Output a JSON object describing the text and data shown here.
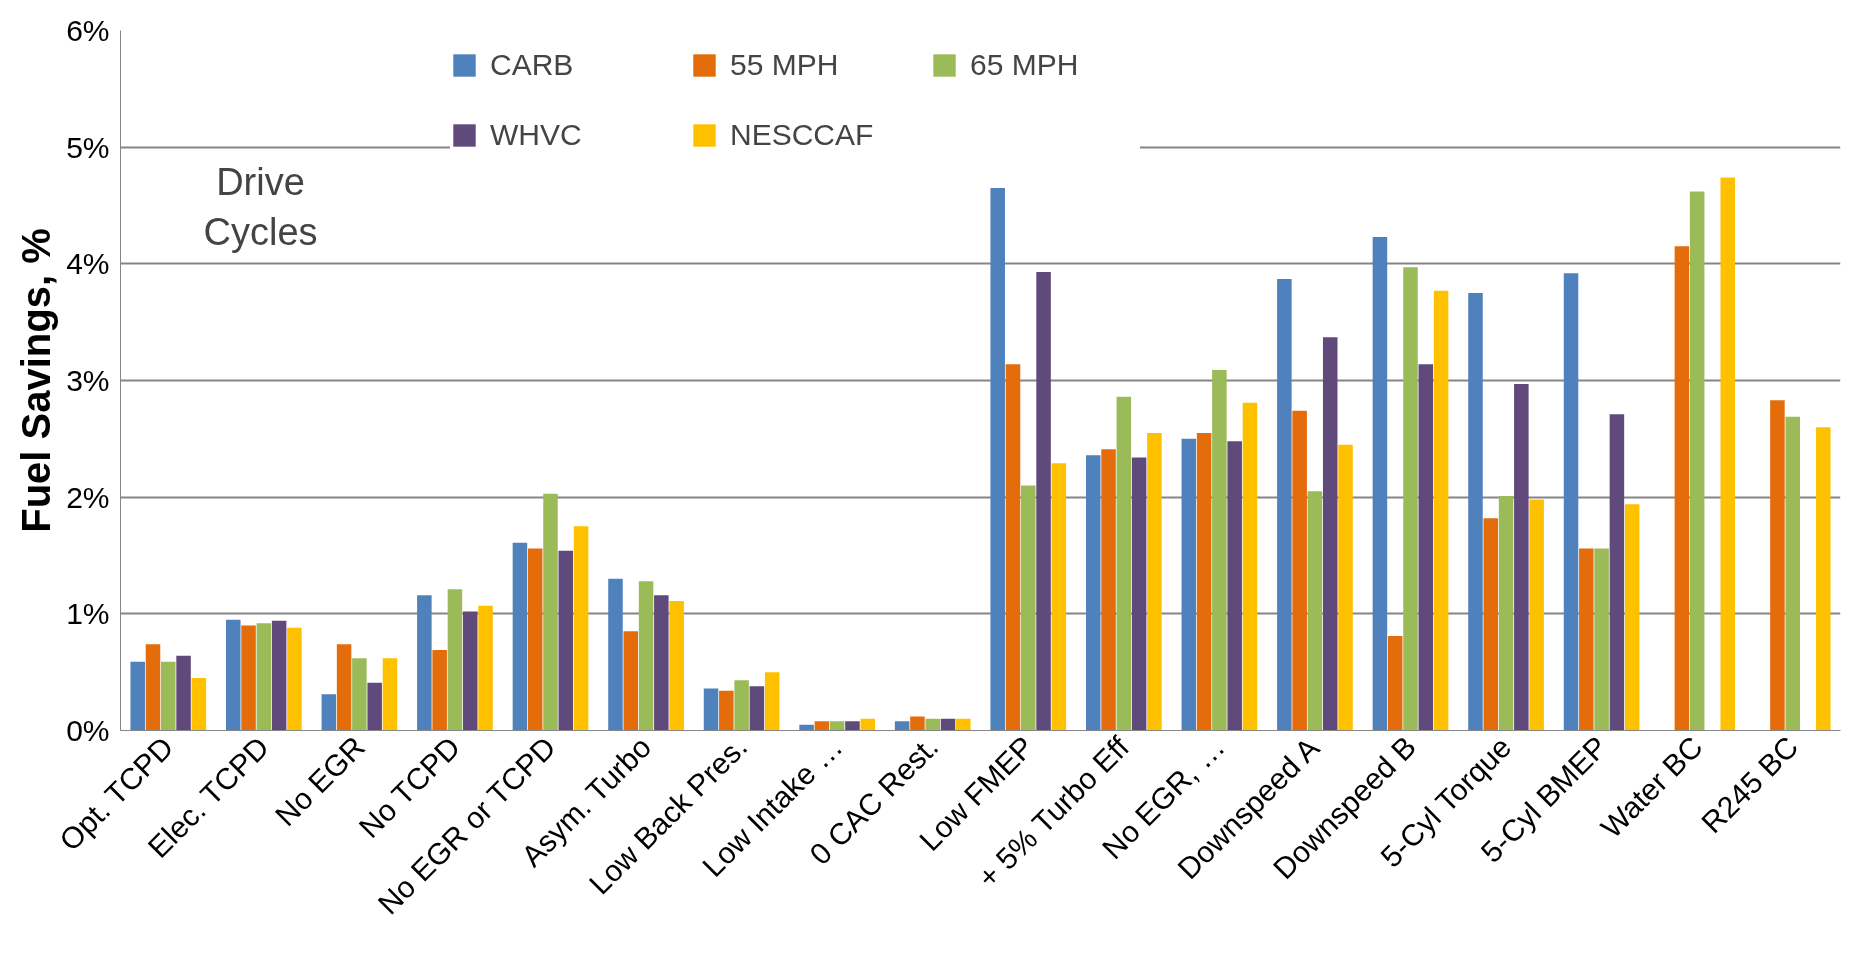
{
  "chart_data": {
    "type": "bar",
    "ylabel": "Fuel Savings, %",
    "legend_title": "Drive Cycles",
    "legend": "top left",
    "grid": "y",
    "categories": [
      "Opt. TCPD",
      "Elec. TCPD",
      "No EGR",
      "No TCPD",
      "No EGR or TCPD",
      "Asym. Turbo",
      "Low Back Pres.",
      "Low Intake …",
      "0 CAC Rest.",
      "Low FMEP",
      "+ 5% Turbo Eff",
      "No EGR, …",
      "Downspeed A",
      "Downspeed B",
      "5-Cyl Torque",
      "5-Cyl BMEP",
      "Water BC",
      "R245 BC"
    ],
    "ylim": [
      0,
      6
    ],
    "yticks": [
      {
        "value": 0,
        "label": "0%"
      },
      {
        "value": 1,
        "label": "1%"
      },
      {
        "value": 2,
        "label": "2%"
      },
      {
        "value": 3,
        "label": "3%"
      },
      {
        "value": 4,
        "label": "4%"
      },
      {
        "value": 5,
        "label": "5%"
      },
      {
        "value": 6,
        "label": "6%"
      }
    ],
    "series": [
      {
        "name": "CARB",
        "color": "#4f81bd",
        "values": [
          0.59,
          0.95,
          0.31,
          1.16,
          1.61,
          1.3,
          0.36,
          0.05,
          0.08,
          4.65,
          2.36,
          2.5,
          3.87,
          4.23,
          3.75,
          3.92,
          null,
          null
        ]
      },
      {
        "name": "55 MPH",
        "color": "#e46c0a",
        "values": [
          0.74,
          0.9,
          0.74,
          0.69,
          1.56,
          0.85,
          0.34,
          0.08,
          0.12,
          3.14,
          2.41,
          2.55,
          2.74,
          0.81,
          1.82,
          1.56,
          4.15,
          2.83
        ]
      },
      {
        "name": "65 MPH",
        "color": "#9bbb59",
        "values": [
          0.59,
          0.92,
          0.62,
          1.21,
          2.03,
          1.28,
          0.43,
          0.08,
          0.1,
          2.1,
          2.86,
          3.09,
          2.05,
          3.97,
          2.01,
          1.56,
          4.62,
          2.69
        ]
      },
      {
        "name": "WHVC",
        "color": "#604a7b",
        "values": [
          0.64,
          0.94,
          0.41,
          1.02,
          1.54,
          1.16,
          0.38,
          0.08,
          0.1,
          3.93,
          2.34,
          2.48,
          3.37,
          3.14,
          2.97,
          2.71,
          null,
          null
        ]
      },
      {
        "name": "NESCCAF",
        "color": "#ffc000",
        "values": [
          0.45,
          0.88,
          0.62,
          1.07,
          1.75,
          1.11,
          0.5,
          0.1,
          0.1,
          2.29,
          2.55,
          2.81,
          2.45,
          3.77,
          1.98,
          1.94,
          4.74,
          2.6
        ]
      }
    ]
  }
}
